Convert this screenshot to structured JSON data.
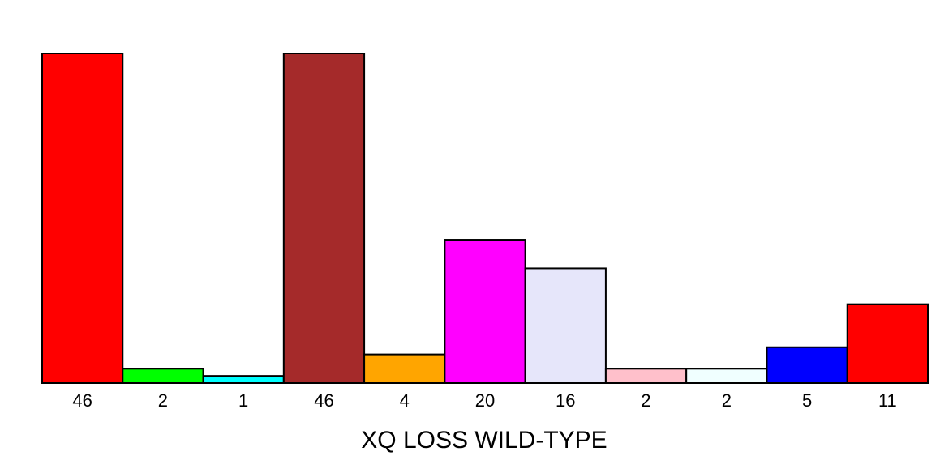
{
  "chart_data": {
    "type": "bar",
    "title": "",
    "xlabel": "XQ LOSS WILD-TYPE",
    "ylabel": "",
    "ylim": [
      0,
      46
    ],
    "grid": false,
    "legend": "none",
    "categories": [
      "46",
      "2",
      "1",
      "46",
      "4",
      "20",
      "16",
      "2",
      "2",
      "5",
      "11"
    ],
    "values": [
      46,
      2,
      1,
      46,
      4,
      20,
      16,
      2,
      2,
      5,
      11
    ],
    "colors": [
      "#ff0000",
      "#00ff00",
      "#00ffff",
      "#a52a2a",
      "#ffa500",
      "#ff00ff",
      "#e6e6fa",
      "#ffc0cb",
      "#f0ffff",
      "#0000ff",
      "#ff0000"
    ]
  }
}
